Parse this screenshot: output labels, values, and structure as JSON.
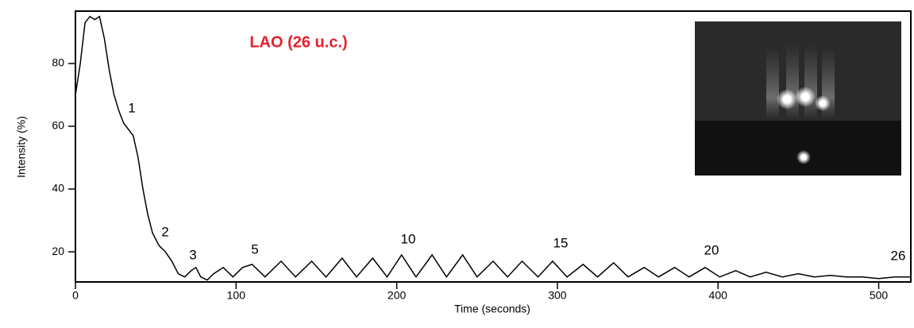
{
  "chart_data": {
    "type": "line",
    "title": "LAO (26 u.c.)",
    "x_label": "Time (seconds)",
    "y_label": "Intensity (%)",
    "color": "#000000",
    "x": [
      0,
      3,
      6,
      9,
      12,
      15,
      18,
      21,
      24,
      27,
      30,
      33,
      36,
      39,
      42,
      45,
      48,
      52,
      56,
      60,
      64,
      68,
      72,
      75,
      78,
      82,
      86,
      92,
      98,
      104,
      110,
      118,
      128,
      137,
      147,
      156,
      166,
      175,
      185,
      194,
      203,
      212,
      222,
      231,
      241,
      250,
      260,
      269,
      278,
      288,
      297,
      306,
      316,
      325,
      335,
      344,
      354,
      363,
      373,
      382,
      392,
      401,
      411,
      420,
      430,
      440,
      450,
      460,
      470,
      480,
      490,
      500,
      510,
      520
    ],
    "values": [
      70,
      80,
      93,
      95,
      94,
      95,
      88,
      78,
      70,
      65,
      61,
      59,
      57,
      50,
      40,
      32,
      26,
      22,
      20,
      17,
      13,
      12,
      14,
      15,
      12,
      11,
      13,
      15,
      12,
      15,
      16,
      12,
      17,
      12,
      17,
      12,
      18,
      12,
      18,
      12,
      19,
      12,
      19,
      12,
      19,
      12,
      17,
      12,
      17,
      12,
      17,
      12,
      16,
      12,
      16.5,
      12,
      15,
      12,
      15,
      12,
      15,
      12,
      14,
      12,
      13.5,
      12,
      13,
      12,
      12.5,
      12,
      12,
      11.5,
      12,
      12
    ],
    "annotations": [
      "1",
      "2",
      "3",
      "5",
      "10",
      "15",
      "20",
      "26"
    ],
    "xlim": [
      0,
      520
    ],
    "xticks": [
      0,
      100,
      200,
      300,
      400,
      500
    ],
    "ylim": [
      10.4,
      96.7
    ],
    "yticks": [
      20,
      40,
      60,
      80
    ]
  }
}
